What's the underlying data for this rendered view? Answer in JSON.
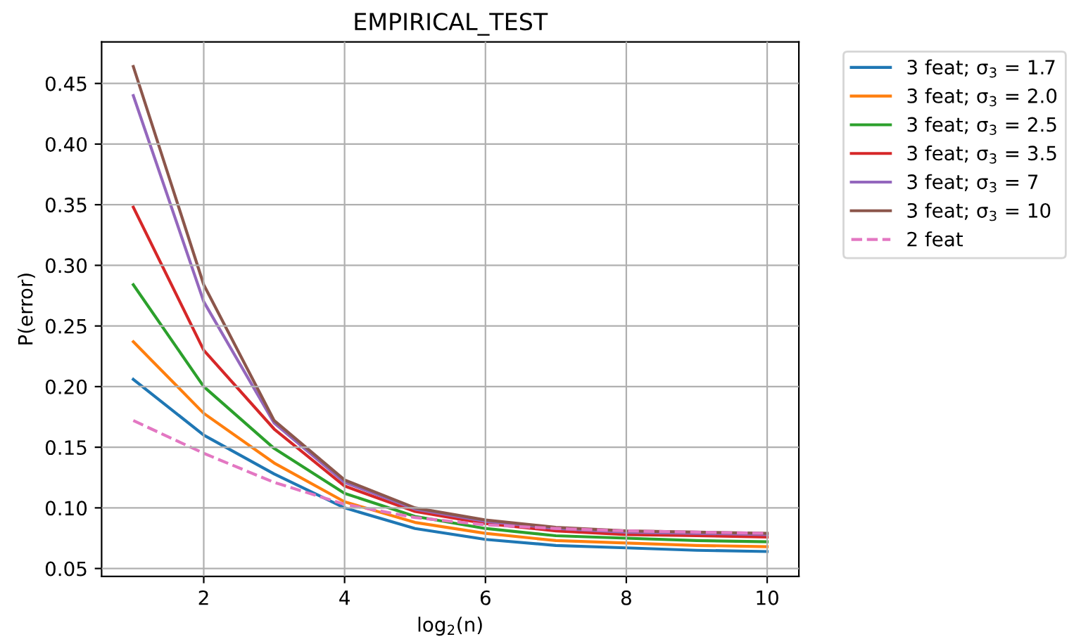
{
  "chart_data": {
    "type": "line",
    "title": "EMPIRICAL_TEST",
    "xlabel": "log$_{2}$(n)",
    "ylabel": "P(error)",
    "x": [
      1,
      2,
      3,
      4,
      5,
      6,
      7,
      8,
      9,
      10
    ],
    "xlim": [
      0.55,
      10.45
    ],
    "xticks": [
      2,
      4,
      6,
      8,
      10
    ],
    "ylim": [
      0.0435,
      0.4843
    ],
    "yticks": [
      {
        "value": 0.05,
        "label": "0.05"
      },
      {
        "value": 0.1,
        "label": "0.10"
      },
      {
        "value": 0.15,
        "label": "0.15"
      },
      {
        "value": 0.2,
        "label": "0.20"
      },
      {
        "value": 0.25,
        "label": "0.25"
      },
      {
        "value": 0.3,
        "label": "0.30"
      },
      {
        "value": 0.35,
        "label": "0.35"
      },
      {
        "value": 0.4,
        "label": "0.40"
      },
      {
        "value": 0.45,
        "label": "0.45"
      }
    ],
    "grid": true,
    "legend": "top right",
    "series": [
      {
        "name": "3 feat; σ$_{3}$ = 1.7",
        "color": "#1f77b4",
        "values": [
          0.206,
          0.16,
          0.128,
          0.1,
          0.083,
          0.074,
          0.069,
          0.067,
          0.065,
          0.064
        ]
      },
      {
        "name": "3 feat; σ$_{3}$ = 2.0",
        "color": "#ff7f0e",
        "values": [
          0.237,
          0.178,
          0.137,
          0.105,
          0.088,
          0.079,
          0.073,
          0.071,
          0.069,
          0.068
        ]
      },
      {
        "name": "3 feat; σ$_{3}$ = 2.5",
        "color": "#2ca02c",
        "values": [
          0.284,
          0.2,
          0.149,
          0.112,
          0.093,
          0.083,
          0.077,
          0.075,
          0.073,
          0.072
        ]
      },
      {
        "name": "3 feat; σ$_{3}$ = 3.5",
        "color": "#d62728",
        "values": [
          0.348,
          0.23,
          0.165,
          0.118,
          0.097,
          0.087,
          0.081,
          0.078,
          0.077,
          0.076
        ]
      },
      {
        "name": "3 feat; σ$_{3}$ = 7",
        "color": "#9467bd",
        "values": [
          0.44,
          0.27,
          0.17,
          0.121,
          0.099,
          0.089,
          0.083,
          0.08,
          0.079,
          0.078
        ]
      },
      {
        "name": "3 feat; σ$_{3}$ = 10",
        "color": "#8c564b",
        "values": [
          0.464,
          0.284,
          0.172,
          0.123,
          0.1,
          0.09,
          0.084,
          0.081,
          0.08,
          0.079
        ]
      },
      {
        "name": "2 feat",
        "color": "#e377c2",
        "line_style": "dashed",
        "values": [
          0.172,
          0.145,
          0.121,
          0.103,
          0.092,
          0.086,
          0.083,
          0.081,
          0.08,
          0.079
        ]
      }
    ]
  }
}
